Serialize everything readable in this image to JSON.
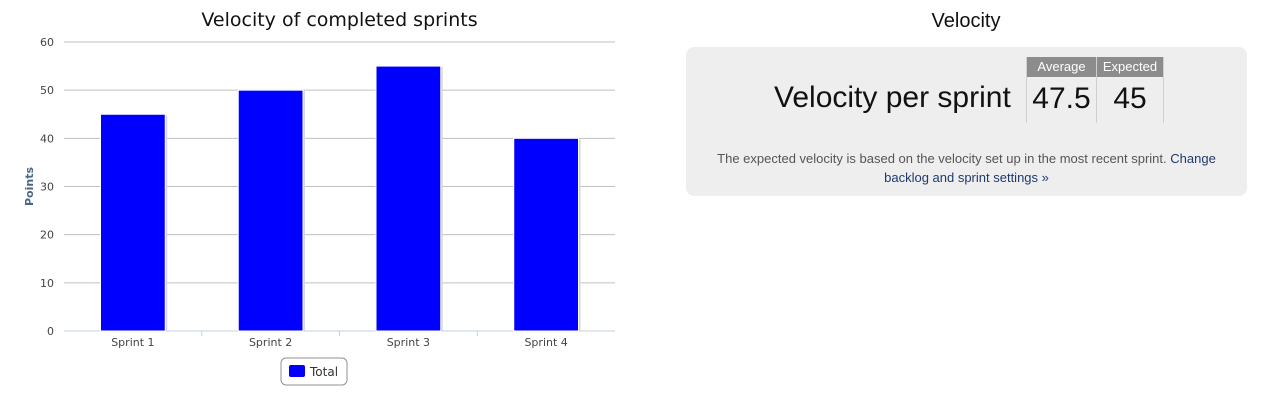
{
  "chart_data": {
    "type": "bar",
    "title": "Velocity of completed sprints",
    "xlabel": "",
    "ylabel": "Points",
    "categories": [
      "Sprint 1",
      "Sprint 2",
      "Sprint 3",
      "Sprint 4"
    ],
    "series": [
      {
        "name": "Total",
        "values": [
          45,
          50,
          55,
          40
        ],
        "color": "#0000ff"
      }
    ],
    "ylim": [
      0,
      60
    ],
    "yticks": [
      "0",
      "10",
      "20",
      "30",
      "40",
      "50",
      "60"
    ],
    "grid": true,
    "legend_position": "bottom"
  },
  "velocity": {
    "title": "Velocity",
    "label": "Velocity per sprint",
    "average_header": "Average",
    "average_value": "47.5",
    "expected_header": "Expected",
    "expected_value": "45",
    "note": "The expected velocity is based on the velocity set up in the most recent sprint.",
    "link_text": "Change backlog and sprint settings »"
  }
}
